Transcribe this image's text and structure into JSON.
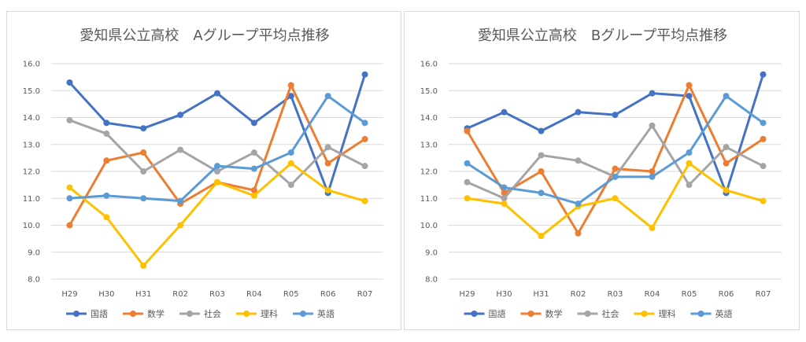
{
  "chart_data": [
    {
      "type": "line",
      "title": "愛知県公立高校　Aグループ平均点推移",
      "categories": [
        "H29",
        "H30",
        "H31",
        "R02",
        "R03",
        "R04",
        "R05",
        "R06",
        "R07"
      ],
      "ylim": [
        8.0,
        16.0
      ],
      "yticks": [
        "8.0",
        "9.0",
        "10.0",
        "11.0",
        "12.0",
        "13.0",
        "14.0",
        "15.0",
        "16.0"
      ],
      "grid": true,
      "legend_position": "bottom",
      "series": [
        {
          "name": "国語",
          "color": "#4472C4",
          "values": [
            15.3,
            13.8,
            13.6,
            14.1,
            14.9,
            13.8,
            14.8,
            11.2,
            15.6
          ]
        },
        {
          "name": "数学",
          "color": "#ED7D31",
          "values": [
            10.0,
            12.4,
            12.7,
            10.8,
            11.6,
            11.3,
            15.2,
            12.3,
            13.2
          ]
        },
        {
          "name": "社会",
          "color": "#A5A5A5",
          "values": [
            13.9,
            13.4,
            12.0,
            12.8,
            12.0,
            12.7,
            11.5,
            12.9,
            12.2
          ]
        },
        {
          "name": "理科",
          "color": "#FFC000",
          "values": [
            11.4,
            10.3,
            8.5,
            10.0,
            11.6,
            11.1,
            12.3,
            11.3,
            10.9
          ]
        },
        {
          "name": "英語",
          "color": "#5B9BD5",
          "values": [
            11.0,
            11.1,
            11.0,
            10.9,
            12.2,
            12.1,
            12.7,
            14.8,
            13.8
          ]
        }
      ]
    },
    {
      "type": "line",
      "title": "愛知県公立高校　Bグループ平均点推移",
      "categories": [
        "H29",
        "H30",
        "H31",
        "R02",
        "R03",
        "R04",
        "R05",
        "R06",
        "R07"
      ],
      "ylim": [
        8.0,
        16.0
      ],
      "yticks": [
        "8.0",
        "9.0",
        "10.0",
        "11.0",
        "12.0",
        "13.0",
        "14.0",
        "15.0",
        "16.0"
      ],
      "grid": true,
      "legend_position": "bottom",
      "series": [
        {
          "name": "国語",
          "color": "#4472C4",
          "values": [
            13.6,
            14.2,
            13.5,
            14.2,
            14.1,
            14.9,
            14.8,
            11.2,
            15.6
          ]
        },
        {
          "name": "数学",
          "color": "#ED7D31",
          "values": [
            13.5,
            11.2,
            12.0,
            9.7,
            12.1,
            12.0,
            15.2,
            12.3,
            13.2
          ]
        },
        {
          "name": "社会",
          "color": "#A5A5A5",
          "values": [
            11.6,
            11.0,
            12.6,
            12.4,
            11.8,
            13.7,
            11.5,
            12.9,
            12.2
          ]
        },
        {
          "name": "理科",
          "color": "#FFC000",
          "values": [
            11.0,
            10.8,
            9.6,
            10.7,
            11.0,
            9.9,
            12.3,
            11.3,
            10.9
          ]
        },
        {
          "name": "英語",
          "color": "#5B9BD5",
          "values": [
            12.3,
            11.4,
            11.2,
            10.8,
            11.8,
            11.8,
            12.7,
            14.8,
            13.8
          ]
        }
      ]
    }
  ]
}
